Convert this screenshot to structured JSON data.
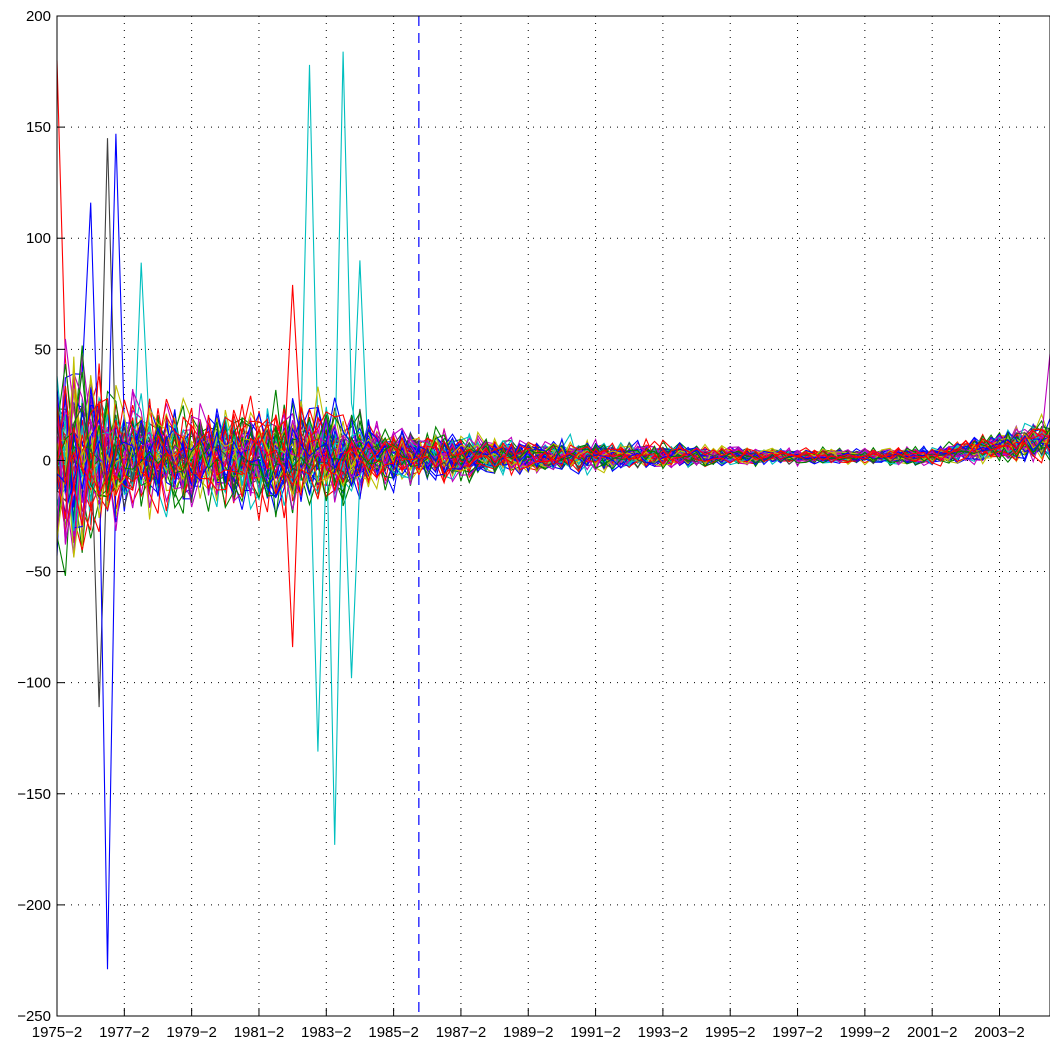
{
  "chart_data": {
    "type": "line",
    "title": "",
    "xlabel": "",
    "ylabel": "",
    "x_start": "1975-2",
    "x_end": "2004-4",
    "x_ticks": [
      "1975-2",
      "1977-2",
      "1979-2",
      "1981-2",
      "1983-2",
      "1985-2",
      "1987-2",
      "1989-2",
      "1991-2",
      "1993-2",
      "1995-2",
      "1997-2",
      "1999-2",
      "2001-2",
      "2003-2"
    ],
    "ylim": [
      -250,
      200
    ],
    "y_ticks": [
      -250,
      -200,
      -150,
      -100,
      -50,
      0,
      50,
      100,
      150,
      200
    ],
    "grid": true,
    "reference_line": {
      "x": "1986-1",
      "style": "dashed",
      "color": "#0000ff"
    },
    "series_count": 60,
    "series_colors": [
      "#0000ff",
      "#008000",
      "#ff0000",
      "#00bfbf",
      "#bf00bf",
      "#bfbf00",
      "#404040"
    ],
    "envelope": {
      "periods": [
        "1975-2",
        "1976-1",
        "1976-2",
        "1977-2",
        "1978-2",
        "1980-2",
        "1982-2",
        "1983-2",
        "1984-2",
        "1986-1",
        "1987-2",
        "1989-2",
        "1991-2",
        "1993-2",
        "1995-2",
        "1997-2",
        "1999-2",
        "2001-2",
        "2003-2",
        "2004-4"
      ],
      "spread": [
        60,
        60,
        50,
        32,
        28,
        28,
        30,
        28,
        20,
        14,
        12,
        10,
        8,
        7,
        5,
        4,
        4,
        5,
        8,
        12
      ]
    },
    "highlighted_extremes": [
      {
        "period": "1975-2",
        "value": 180,
        "color": "#ff0000"
      },
      {
        "period": "1976-2",
        "value": 116,
        "color": "#0000ff"
      },
      {
        "period": "1976-3",
        "value": -111,
        "color": "#404040"
      },
      {
        "period": "1976-4",
        "value": 145,
        "color": "#404040"
      },
      {
        "period": "1976-4",
        "value": -229,
        "color": "#0000ff"
      },
      {
        "period": "1977-1",
        "value": 147,
        "color": "#0000ff"
      },
      {
        "period": "1977-4",
        "value": 89,
        "color": "#00bfbf"
      },
      {
        "period": "1982-2",
        "value": 79,
        "color": "#ff0000"
      },
      {
        "period": "1982-2",
        "value": -84,
        "color": "#ff0000"
      },
      {
        "period": "1982-4",
        "value": 178,
        "color": "#00bfbf"
      },
      {
        "period": "1983-1",
        "value": -131,
        "color": "#00bfbf"
      },
      {
        "period": "1983-3",
        "value": -173,
        "color": "#00bfbf"
      },
      {
        "period": "1983-4",
        "value": 184,
        "color": "#00bfbf"
      },
      {
        "period": "1984-2",
        "value": 90,
        "color": "#00bfbf"
      },
      {
        "period": "1984-1",
        "value": -98,
        "color": "#00bfbf"
      },
      {
        "period": "2004-4",
        "value": 48,
        "color": "#bf00bf"
      }
    ]
  }
}
